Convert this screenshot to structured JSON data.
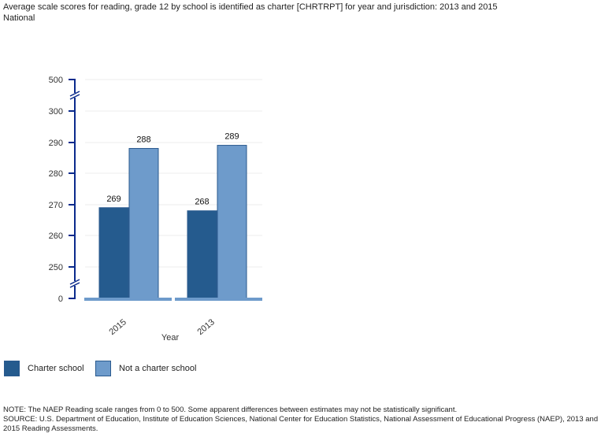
{
  "title": "Average scale scores for reading, grade 12 by school is identified as charter [CHRTRPT] for year and jurisdiction: 2013 and 2015",
  "subtitle": "National",
  "chart_data": {
    "type": "bar",
    "categories": [
      "2015",
      "2013"
    ],
    "series": [
      {
        "name": "Charter school",
        "values": [
          269,
          268
        ],
        "color": "#255b8e"
      },
      {
        "name": "Not a charter school",
        "values": [
          288,
          289
        ],
        "color": "#6e9bcb"
      }
    ],
    "xlabel": "Year",
    "ylabel": "",
    "yticks": [
      "0",
      "250",
      "260",
      "270",
      "280",
      "290",
      "300",
      "500"
    ],
    "ylim": [
      250,
      300
    ],
    "axis_breaks": [
      "0-250",
      "300-500"
    ],
    "grid": true,
    "legend": "bottom-left"
  },
  "notes": {
    "note": "NOTE: The NAEP Reading scale ranges from 0 to 500. Some apparent differences between estimates may not be statistically significant.",
    "source": "SOURCE: U.S. Department of Education, Institute of Education Sciences, National Center for Education Statistics, National Assessment of Educational Progress (NAEP), 2013 and 2015 Reading Assessments."
  }
}
